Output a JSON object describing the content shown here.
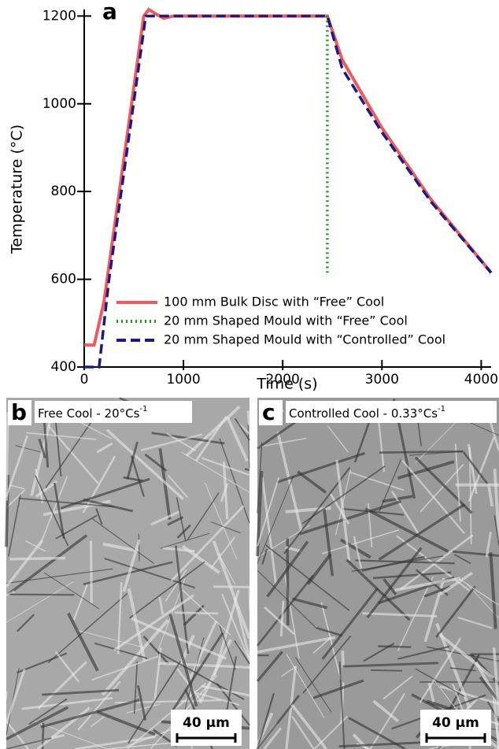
{
  "chart_data": {
    "type": "line",
    "panel_label": "a",
    "xlabel": "Time (s)",
    "ylabel": "Temperature (°C)",
    "xlim": [
      0,
      4100
    ],
    "ylim": [
      400,
      1215
    ],
    "xticks": [
      0,
      1000,
      2000,
      3000,
      4000
    ],
    "yticks": [
      400,
      600,
      800,
      1000,
      1200
    ],
    "legend": "lower right",
    "series": [
      {
        "name": "100 mm Bulk Disc with “Free” Cool",
        "color": "#f05a5a",
        "style": "solid",
        "x": [
          0,
          100,
          200,
          600,
          650,
          720,
          800,
          900,
          2450,
          2600,
          3000,
          3500,
          4100
        ],
        "values": [
          450,
          450,
          550,
          1200,
          1215,
          1205,
          1195,
          1200,
          1200,
          1100,
          945,
          780,
          615
        ]
      },
      {
        "name": "20 mm Shaped Mould with “Free” Cool",
        "color": "#1a9a1a",
        "style": "dotted",
        "x": [
          2450,
          2450
        ],
        "values": [
          1200,
          615
        ]
      },
      {
        "name": "20 mm Shaped Mould with “Controlled” Cool",
        "color": "#1a1a8c",
        "style": "dashed",
        "x": [
          0,
          150,
          250,
          620,
          2450,
          2600,
          3000,
          3500,
          4100
        ],
        "values": [
          400,
          400,
          600,
          1200,
          1200,
          1080,
          935,
          775,
          615
        ]
      }
    ]
  },
  "panels": [
    {
      "label": "b",
      "caption": "Free Cool - 20°Cs",
      "superscript": "-1",
      "scale_bar": "40 μm"
    },
    {
      "label": "c",
      "caption": "Controlled Cool - 0.33°Cs",
      "superscript": "-1",
      "scale_bar": "40 μm"
    }
  ]
}
